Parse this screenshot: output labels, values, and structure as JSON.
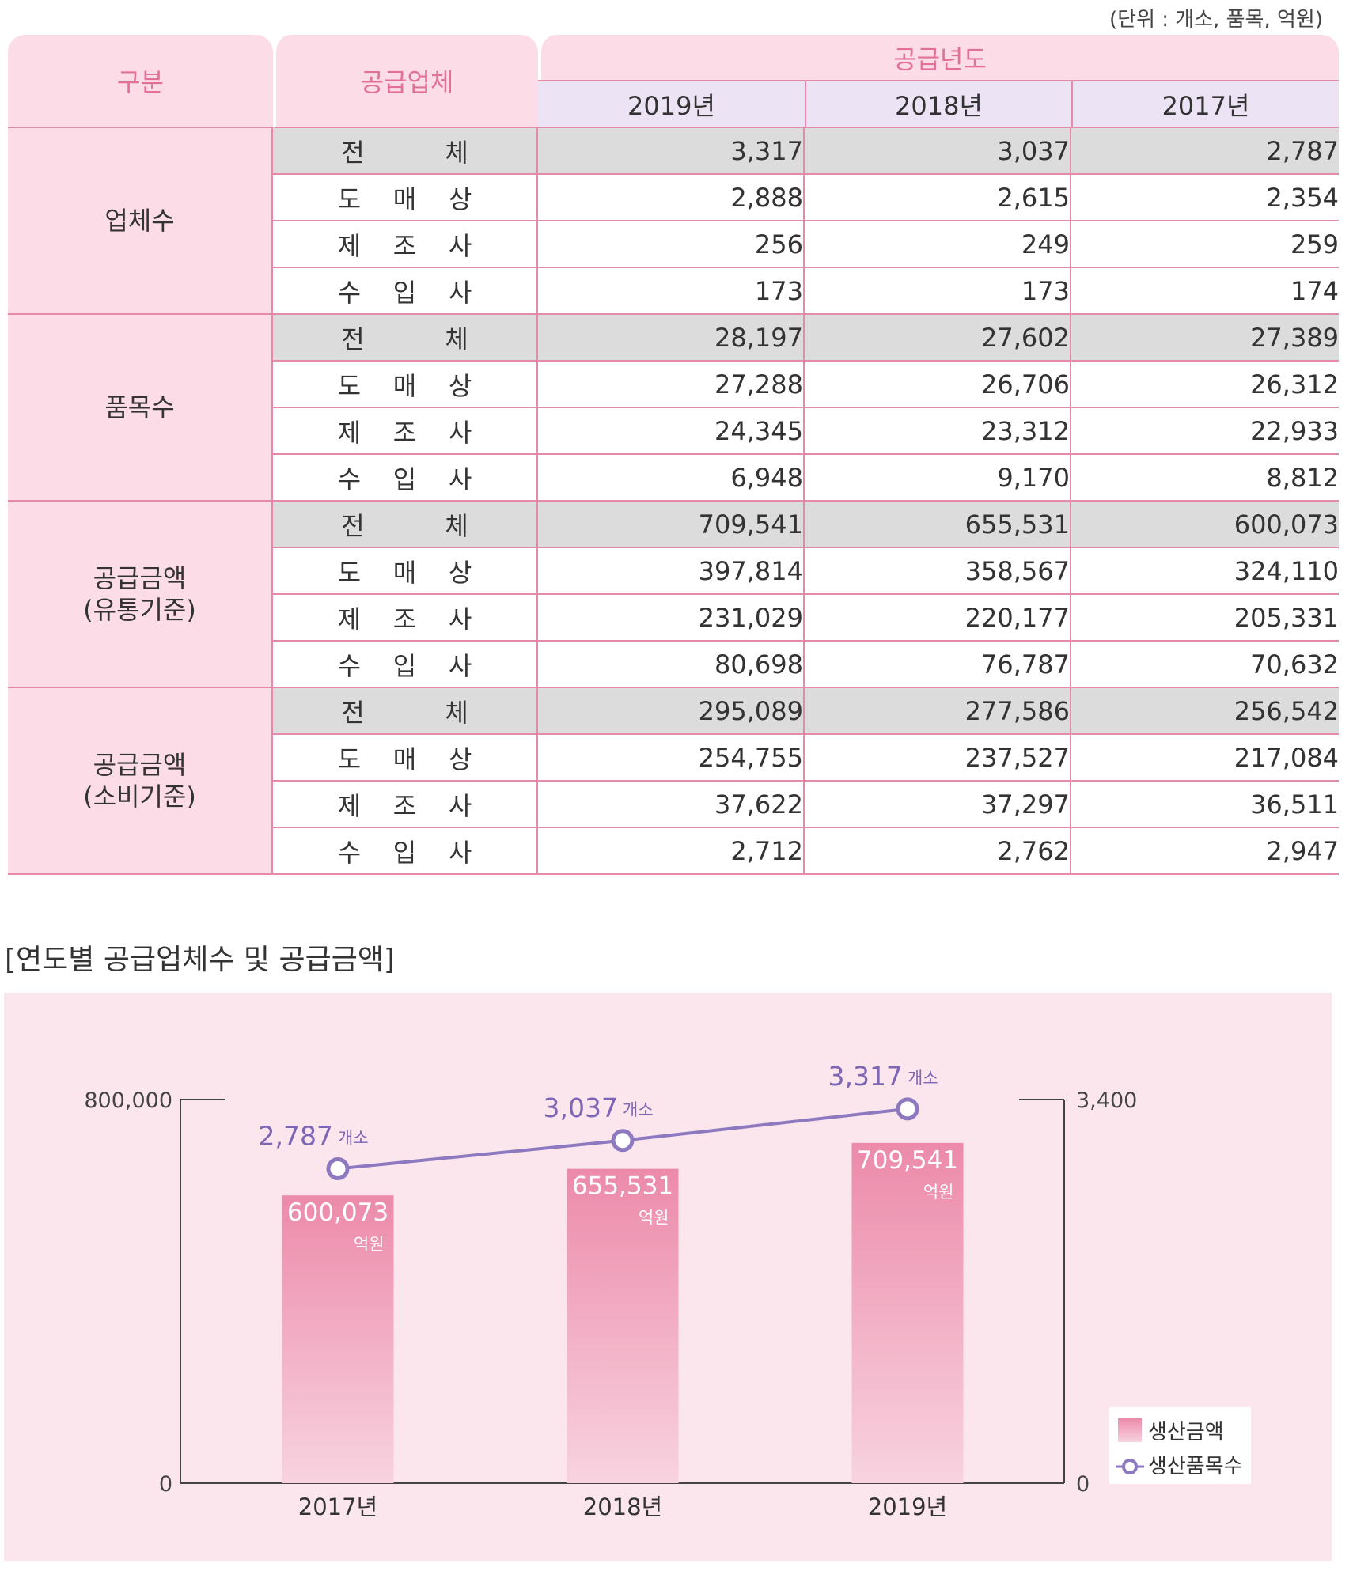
{
  "unit_note": "(단위 : 개소, 품목, 억원)",
  "table": {
    "headers": {
      "category": "구분",
      "supplier": "공급업체",
      "year_group": "공급년도",
      "years": [
        "2019년",
        "2018년",
        "2017년"
      ]
    },
    "groups": [
      {
        "label1": "업체수",
        "label2": "",
        "rows": [
          {
            "label": "전          체",
            "values": [
              "3,317",
              "3,037",
              "2,787"
            ]
          },
          {
            "label": "도    매    상",
            "values": [
              "2,888",
              "2,615",
              "2,354"
            ]
          },
          {
            "label": "제    조    사",
            "values": [
              "256",
              "249",
              "259"
            ]
          },
          {
            "label": "수    입    사",
            "values": [
              "173",
              "173",
              "174"
            ]
          }
        ]
      },
      {
        "label1": "품목수",
        "label2": "",
        "rows": [
          {
            "label": "전          체",
            "values": [
              "28,197",
              "27,602",
              "27,389"
            ]
          },
          {
            "label": "도    매    상",
            "values": [
              "27,288",
              "26,706",
              "26,312"
            ]
          },
          {
            "label": "제    조    사",
            "values": [
              "24,345",
              "23,312",
              "22,933"
            ]
          },
          {
            "label": "수    입    사",
            "values": [
              "6,948",
              "9,170",
              "8,812"
            ]
          }
        ]
      },
      {
        "label1": "공급금액",
        "label2": "(유통기준)",
        "rows": [
          {
            "label": "전          체",
            "values": [
              "709,541",
              "655,531",
              "600,073"
            ]
          },
          {
            "label": "도    매    상",
            "values": [
              "397,814",
              "358,567",
              "324,110"
            ]
          },
          {
            "label": "제    조    사",
            "values": [
              "231,029",
              "220,177",
              "205,331"
            ]
          },
          {
            "label": "수    입    사",
            "values": [
              "80,698",
              "76,787",
              "70,632"
            ]
          }
        ]
      },
      {
        "label1": "공급금액",
        "label2": "(소비기준)",
        "rows": [
          {
            "label": "전          체",
            "values": [
              "295,089",
              "277,586",
              "256,542"
            ]
          },
          {
            "label": "도    매    상",
            "values": [
              "254,755",
              "237,527",
              "217,084"
            ]
          },
          {
            "label": "제    조    사",
            "values": [
              "37,622",
              "37,297",
              "36,511"
            ]
          },
          {
            "label": "수    입    사",
            "values": [
              "2,712",
              "2,762",
              "2,947"
            ]
          }
        ]
      }
    ]
  },
  "chart_title": "[연도별 공급업체수 및 공급금액]",
  "chart_data": {
    "type": "bar",
    "categories": [
      "2017년",
      "2018년",
      "2019년"
    ],
    "series": [
      {
        "name": "생산금액",
        "type": "bar",
        "axis": "left",
        "values": [
          600073,
          655531,
          709541
        ],
        "labels": [
          "600,073",
          "655,531",
          "709,541"
        ],
        "unit": "억원"
      },
      {
        "name": "생산품목수",
        "type": "line",
        "axis": "right",
        "values": [
          2787,
          3037,
          3317
        ],
        "labels": [
          "2,787",
          "3,037",
          "3,317"
        ],
        "unit": "개소"
      }
    ],
    "y_left": {
      "min": 0,
      "max": 800000,
      "tick_labels": [
        "0",
        "800,000"
      ]
    },
    "y_right": {
      "min": 0,
      "max": 3400,
      "tick_labels": [
        "0",
        "3,400"
      ]
    },
    "legend_position": "bottom-right",
    "grid": false,
    "colors": {
      "bar_top": "#ec8aaa",
      "bar_bottom": "#f8d3df",
      "line": "#8d79bf",
      "label": "#7d66b5",
      "panel": "#fce6ee"
    }
  }
}
